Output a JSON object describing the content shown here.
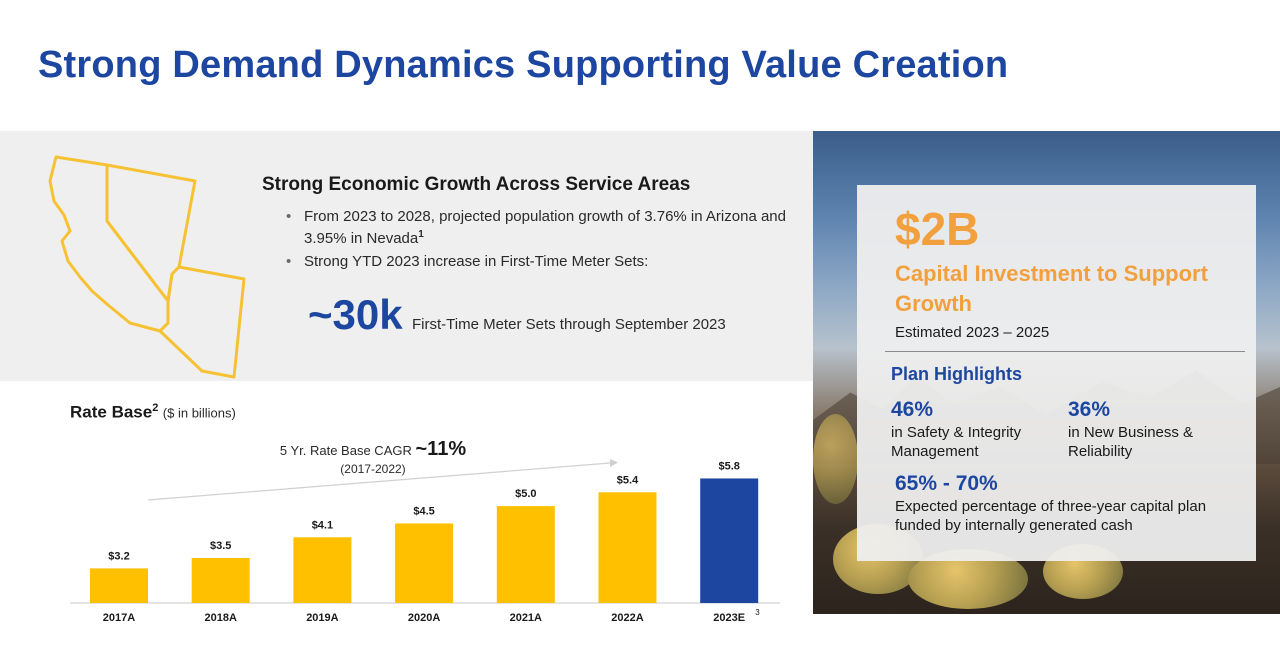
{
  "slide": {
    "title": "Strong Demand Dynamics Supporting Value Creation"
  },
  "growth": {
    "map_icon": "nevada-arizona-california-map-icon",
    "heading": "Strong Economic Growth Across Service Areas",
    "bullet1_text": "From 2023 to 2028, projected population growth of 3.76% in Arizona and 3.95% in Nevada",
    "bullet1_footnote": "1",
    "bullet2_text": "Strong YTD 2023 increase in First-Time Meter Sets:",
    "meter_value": "~30k",
    "meter_label": "First-Time Meter Sets through September 2023"
  },
  "chart_data": {
    "type": "bar",
    "title": "Rate Base",
    "title_footnote": "2",
    "subtitle": "($ in billions)",
    "categories": [
      "2017A",
      "2018A",
      "2019A",
      "2020A",
      "2021A",
      "2022A",
      "2023E"
    ],
    "values": [
      3.2,
      3.5,
      4.1,
      4.5,
      5.0,
      5.4,
      5.8
    ],
    "data_labels": [
      "$3.2",
      "$3.5",
      "$4.1",
      "$4.5",
      "$5.0",
      "$5.4",
      "$5.8"
    ],
    "last_category_footnote": "3",
    "colors": {
      "actual": "#ffc000",
      "estimate": "#1d46a0"
    },
    "ylim": [
      2.2,
      5.9
    ],
    "annotation": {
      "label": "5 Yr. Rate Base CAGR",
      "value": "~11%",
      "period": "(2017-2022)"
    }
  },
  "capex": {
    "amount": "$2B",
    "title": "Capital Investment to Support Growth",
    "subtitle": "Estimated 2023 – 2025",
    "plan_title": "Plan Highlights",
    "highlights": [
      {
        "value": "46%",
        "label": "in Safety & Integrity Management"
      },
      {
        "value": "36%",
        "label": "in New Business & Reliability"
      },
      {
        "value": "65% - 70%",
        "label": "Expected percentage of three-year capital plan funded by internally generated cash"
      }
    ]
  },
  "colors": {
    "brand_blue": "#1d46a0",
    "accent_orange": "#f2a03d",
    "map_yellow": "#f6c234",
    "panel_gray": "#efefef"
  }
}
